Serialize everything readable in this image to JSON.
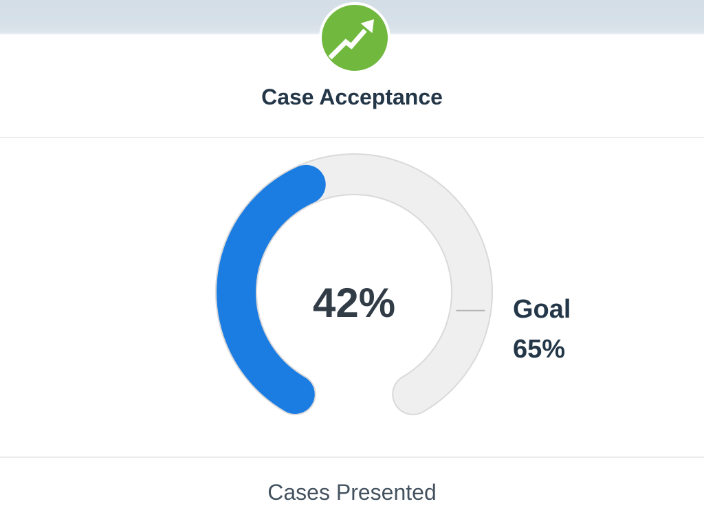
{
  "header": {
    "icon": "trend-up-arrow",
    "icon_background": "#71b83f",
    "icon_glyph_color": "#ffffff"
  },
  "chart_data": {
    "type": "gauge",
    "title": "Case Acceptance",
    "value": 42,
    "value_label": "42%",
    "min": 0,
    "max": 100,
    "goal": 65,
    "goal_label": "Goal",
    "goal_value_label": "65%",
    "footer": "Cases Presented",
    "value_color": "#1b7ce1",
    "track_color": "#efefef",
    "track_border_color": "#d9d9d9",
    "goal_tick_color": "#b4b4b4",
    "legend_position": "right",
    "layout_hints": {
      "gauge_start_deg_cw_from_top": 210,
      "gauge_sweep_deg": 300,
      "goal_tick_side": "right"
    }
  },
  "colors": {
    "topbar_top": "#d4dee7",
    "topbar_bottom": "#eaeff4",
    "title_text": "#243748",
    "value_text": "#313c47",
    "goal_text": "#243748",
    "footer_text": "#44525f",
    "divider": "#ebebeb"
  }
}
